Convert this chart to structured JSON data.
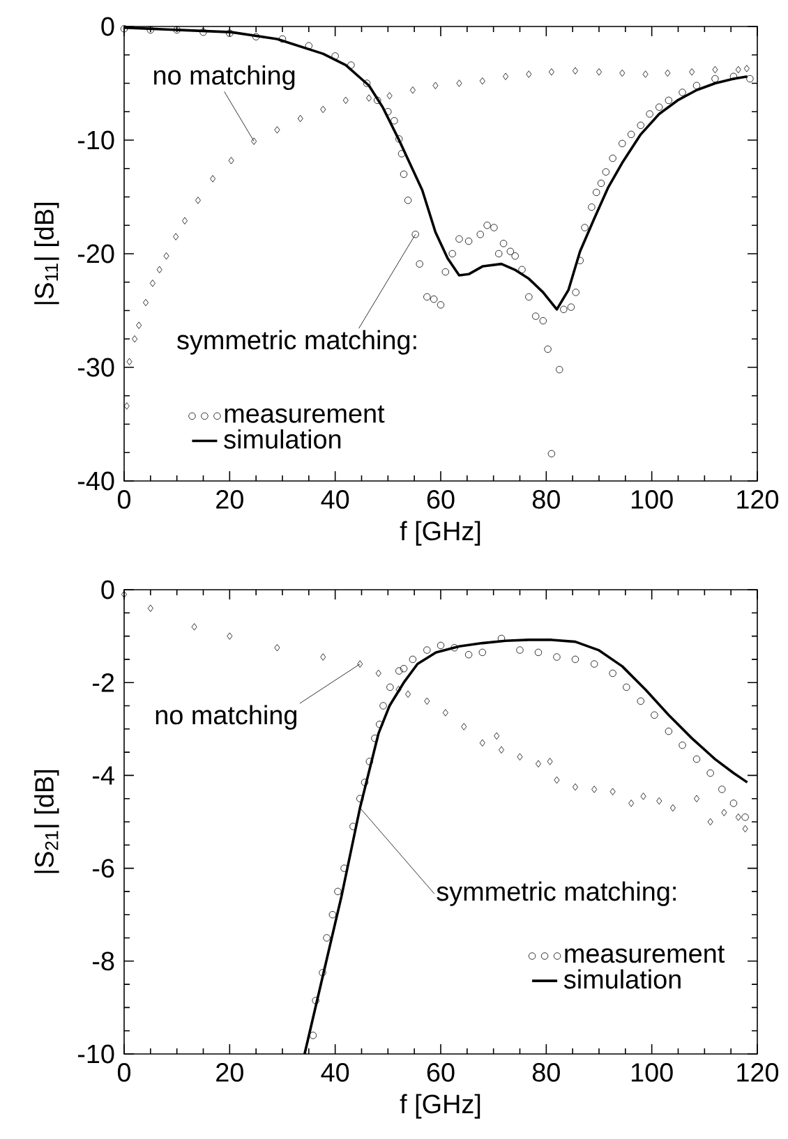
{
  "chart_data": [
    {
      "type": "scatter",
      "xlabel": "f  [GHz]",
      "ylabel": "|S$_{11}$|   [dB]",
      "xlim": [
        0,
        120
      ],
      "xticks": [
        0,
        20,
        40,
        60,
        80,
        100,
        120
      ],
      "ylim": [
        -40,
        0
      ],
      "yticks": [
        -40,
        -30,
        -20,
        -10,
        0
      ],
      "legend": "bottom left",
      "annotations": [
        {
          "text": "no matching",
          "x": 24.6,
          "y": -10.1
        },
        {
          "text": "symmetric matching:",
          "x": 55.2,
          "y": -18.3
        }
      ],
      "series": [
        {
          "type": "scatter",
          "marker": "diamond",
          "color": "#000000",
          "x": [
            0.5,
            1,
            2,
            2.8,
            4.1,
            5.4,
            6.7,
            8,
            9.8,
            11.5,
            14,
            16.8,
            20.3,
            24.6,
            29,
            33.4,
            37.7,
            42,
            46.4,
            50.3,
            54.7,
            59,
            63.5,
            67.9,
            72.3,
            76.7,
            81,
            85.5,
            90,
            94.4,
            98.8,
            103,
            107.6,
            112,
            116.4,
            118
          ],
          "values": [
            -33.4,
            -29.5,
            -27.5,
            -26.3,
            -24.3,
            -22.6,
            -21.4,
            -20.2,
            -18.5,
            -17.1,
            -15.3,
            -13.4,
            -11.8,
            -10.1,
            -9.1,
            -8.1,
            -7.3,
            -6.5,
            -6.3,
            -6.1,
            -5.6,
            -5.2,
            -5.0,
            -4.8,
            -4.4,
            -4.2,
            -4.0,
            -3.9,
            -4.0,
            -4.1,
            -4.2,
            -4.1,
            -4.0,
            -3.8,
            -3.8,
            -3.7
          ]
        },
        {
          "name": "measurement",
          "type": "scatter",
          "marker": "circle",
          "color": "#000000",
          "x": [
            0,
            5,
            10,
            15,
            20,
            25,
            30,
            35,
            40,
            43,
            46,
            48,
            50,
            51.2,
            52.1,
            52.6,
            53,
            53.8,
            55.2,
            56,
            57.4,
            58.7,
            60,
            60.9,
            62.2,
            63.5,
            65.3,
            67.5,
            68.8,
            70.1,
            71,
            71.9,
            73.2,
            74.1,
            75.4,
            76.7,
            78,
            79.4,
            80.3,
            81,
            82.5,
            83.3,
            84.7,
            85.6,
            86.4,
            87.3,
            88.6,
            89.5,
            90.4,
            91.3,
            92.6,
            94.4,
            96.1,
            97.9,
            99.6,
            101.4,
            103.2,
            105.8,
            108.5,
            112,
            115.5,
            118.6
          ],
          "values": [
            -0.2,
            -0.3,
            -0.3,
            -0.5,
            -0.6,
            -0.9,
            -1.1,
            -1.7,
            -2.6,
            -3.4,
            -5.0,
            -6.5,
            -7.5,
            -8.3,
            -9.9,
            -11.2,
            -13,
            -15.3,
            -18.3,
            -20.9,
            -23.8,
            -24.0,
            -24.5,
            -21.6,
            -20,
            -18.7,
            -18.9,
            -18.3,
            -17.5,
            -17.7,
            -20,
            -19.1,
            -19.8,
            -20.2,
            -21.4,
            -23.8,
            -25.5,
            -25.9,
            -28.4,
            -37.6,
            -30.2,
            -24.9,
            -24.7,
            -23.4,
            -20.6,
            -17.7,
            -15.9,
            -14.6,
            -13.8,
            -12.8,
            -11.6,
            -10.3,
            -9.5,
            -8.7,
            -7.7,
            -7.1,
            -6.5,
            -5.8,
            -5.2,
            -4.6,
            -4.4,
            -4.6
          ]
        },
        {
          "name": "simulation",
          "type": "line",
          "marker": "none",
          "line_style": "solid",
          "color": "#000000",
          "x": [
            0,
            20.3,
            29,
            37.7,
            42,
            46.4,
            49,
            52,
            56.5,
            59,
            61.3,
            63.5,
            65.3,
            68,
            71.5,
            74,
            76.7,
            79.4,
            82,
            84.2,
            86.4,
            89.1,
            91.7,
            94.4,
            97.9,
            101.4,
            104.9,
            108.5,
            112,
            115.5,
            118.1
          ],
          "values": [
            -0.1,
            -0.5,
            -1.1,
            -2.4,
            -3.4,
            -5.2,
            -7.1,
            -9.9,
            -14.4,
            -18.1,
            -20.4,
            -21.9,
            -21.8,
            -21.1,
            -20.9,
            -21.4,
            -22.2,
            -23.4,
            -24.9,
            -23.2,
            -19.8,
            -16.9,
            -14.2,
            -12,
            -9.5,
            -7.7,
            -6.5,
            -5.6,
            -5,
            -4.6,
            -4.4
          ]
        }
      ]
    },
    {
      "type": "scatter",
      "xlabel": "f  [GHz]",
      "ylabel": "|S$_{21}$|   [dB]",
      "xlim": [
        0,
        120
      ],
      "xticks": [
        0,
        20,
        40,
        60,
        80,
        100,
        120
      ],
      "ylim": [
        -10,
        0
      ],
      "yticks": [
        -10,
        -8,
        -6,
        -4,
        -2,
        0
      ],
      "legend": "bottom right",
      "annotations": [
        {
          "text": "no matching",
          "x": 44.7,
          "y": -1.6
        },
        {
          "text": "symmetric matching:",
          "x": 44.7,
          "y": -4.7
        }
      ],
      "series": [
        {
          "type": "scatter",
          "marker": "diamond",
          "color": "#000000",
          "x": [
            0,
            5,
            13.3,
            20,
            29,
            37.7,
            44.7,
            48.2,
            52,
            53.8,
            57.4,
            60.9,
            64.4,
            67.9,
            70.6,
            71.5,
            75,
            78.5,
            80.7,
            82,
            85.5,
            89.1,
            92.6,
            96.1,
            98.4,
            101.4,
            104,
            108.5,
            111.1,
            113.7,
            116.4,
            117.7
          ],
          "values": [
            -0.1,
            -0.4,
            -0.8,
            -1.0,
            -1.25,
            -1.45,
            -1.6,
            -1.8,
            -2.15,
            -2.25,
            -2.4,
            -2.65,
            -2.95,
            -3.3,
            -3.15,
            -3.45,
            -3.6,
            -3.75,
            -3.7,
            -4.1,
            -4.25,
            -4.3,
            -4.35,
            -4.6,
            -4.45,
            -4.55,
            -4.7,
            -4.5,
            -5.0,
            -4.8,
            -4.9,
            -5.15
          ]
        },
        {
          "name": "measurement",
          "type": "scatter",
          "marker": "circle",
          "color": "#000000",
          "x": [
            35.8,
            36.3,
            37.6,
            38.4,
            39.5,
            40.5,
            41.7,
            43.4,
            44.7,
            45.6,
            46.5,
            47.5,
            48.4,
            49.1,
            50.4,
            52.1,
            53,
            54.7,
            57.4,
            60,
            62.6,
            65.3,
            67.9,
            71.5,
            75,
            78.5,
            82,
            85.5,
            89.1,
            92.6,
            95.2,
            97.9,
            100.5,
            103.2,
            105.8,
            108.5,
            111.1,
            113.3,
            115.5,
            117.7
          ],
          "values": [
            -9.6,
            -8.85,
            -8.25,
            -7.5,
            -7.0,
            -6.5,
            -6.0,
            -5.1,
            -4.5,
            -4.15,
            -3.7,
            -3.2,
            -2.9,
            -2.5,
            -2.1,
            -1.75,
            -1.7,
            -1.5,
            -1.3,
            -1.2,
            -1.25,
            -1.4,
            -1.35,
            -1.05,
            -1.3,
            -1.35,
            -1.45,
            -1.5,
            -1.6,
            -1.8,
            -2.1,
            -2.4,
            -2.7,
            -3.05,
            -3.35,
            -3.65,
            -3.95,
            -4.3,
            -4.6,
            -4.9
          ]
        },
        {
          "name": "simulation",
          "type": "line",
          "marker": "none",
          "line_style": "solid",
          "color": "#000000",
          "x": [
            34.2,
            37.7,
            41.2,
            44.7,
            48.2,
            50.3,
            53,
            55.6,
            59.1,
            63.5,
            67.9,
            72.3,
            76.7,
            81,
            85.5,
            89.9,
            94.4,
            98.8,
            103.2,
            107.6,
            112,
            115.5,
            118.1
          ],
          "values": [
            -10,
            -8.3,
            -6.6,
            -4.7,
            -3.1,
            -2.5,
            -2.0,
            -1.6,
            -1.35,
            -1.22,
            -1.15,
            -1.1,
            -1.08,
            -1.08,
            -1.12,
            -1.3,
            -1.65,
            -2.15,
            -2.7,
            -3.2,
            -3.65,
            -3.95,
            -4.15
          ]
        }
      ]
    }
  ]
}
